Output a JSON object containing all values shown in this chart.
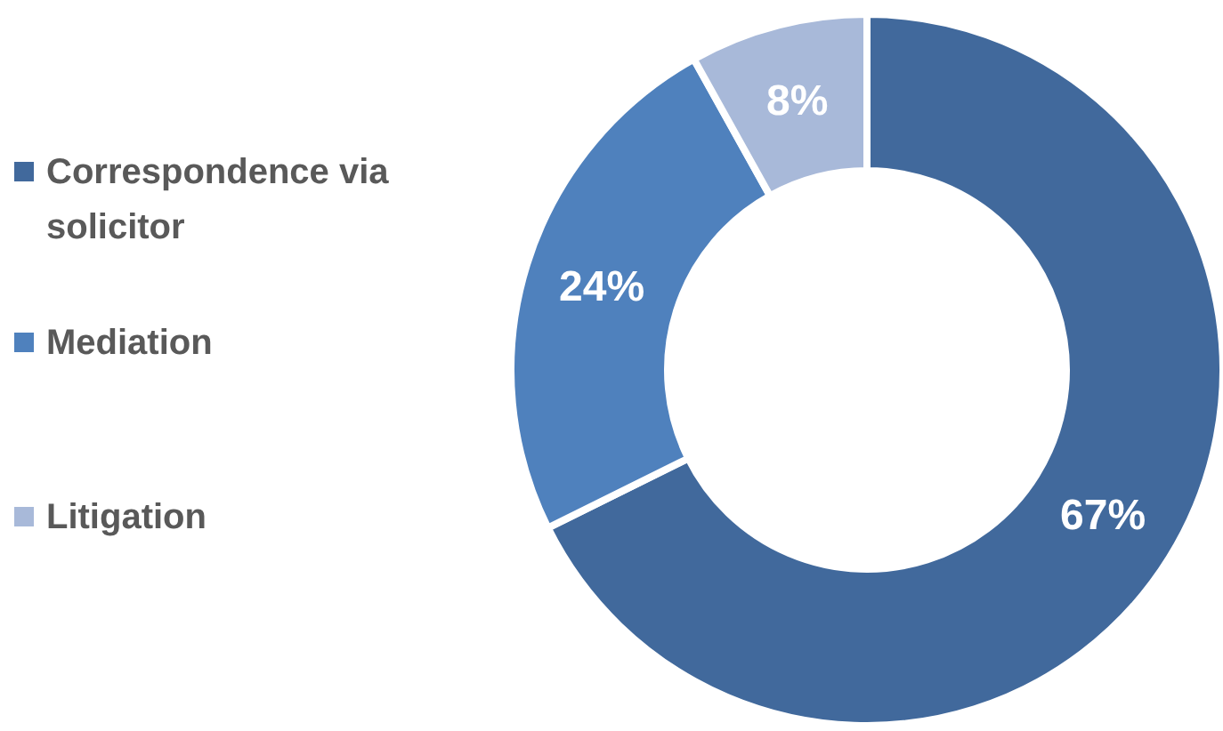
{
  "chart_data": {
    "type": "donut",
    "categories": [
      "Correspondence via solicitor",
      "Mediation",
      "Litigation"
    ],
    "values": [
      67,
      24,
      8
    ],
    "colors": [
      "#41699c",
      "#4f81bd",
      "#a8b9d9"
    ],
    "value_labels": [
      "67%",
      "24%",
      "8%"
    ],
    "legend": "left"
  }
}
